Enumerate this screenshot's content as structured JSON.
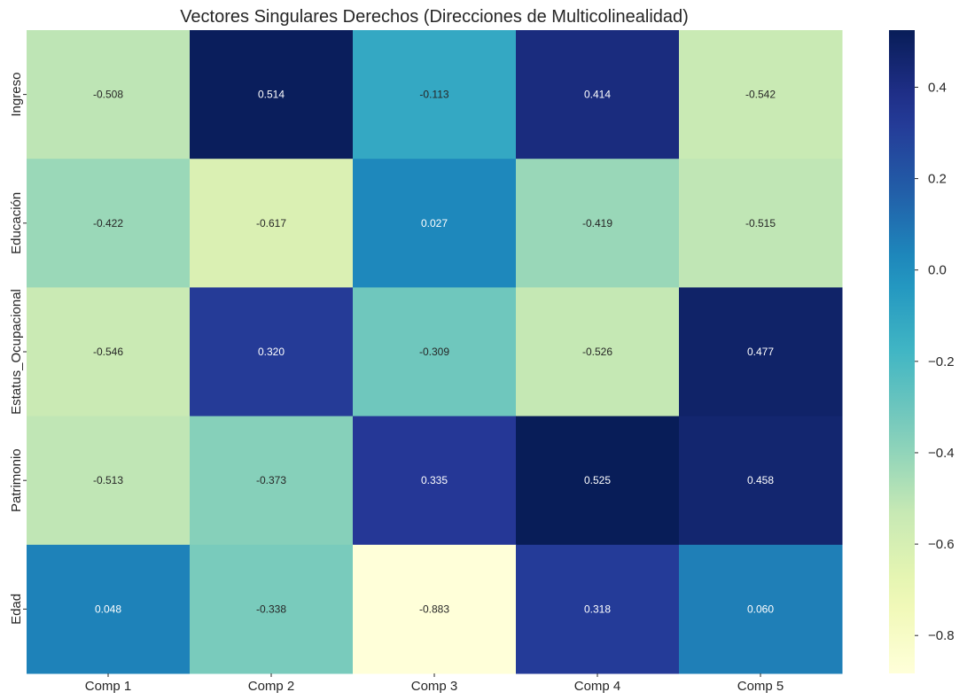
{
  "chart_data": {
    "type": "heatmap",
    "title": "Vectores Singulares Derechos (Direcciones de Multicolinealidad)",
    "xlabel": "",
    "ylabel": "",
    "x_categories": [
      "Comp 1",
      "Comp 2",
      "Comp 3",
      "Comp 4",
      "Comp 5"
    ],
    "y_categories": [
      "Ingreso",
      "Educación",
      "Estatus_Ocupacional",
      "Patrimonio",
      "Edad"
    ],
    "values": [
      [
        -0.508,
        0.514,
        -0.113,
        0.414,
        -0.542
      ],
      [
        -0.422,
        -0.617,
        0.027,
        -0.419,
        -0.515
      ],
      [
        -0.546,
        0.32,
        -0.309,
        -0.526,
        0.477
      ],
      [
        -0.513,
        -0.373,
        0.335,
        0.525,
        0.458
      ],
      [
        0.048,
        -0.338,
        -0.883,
        0.318,
        0.06
      ]
    ],
    "value_format": "0.000",
    "colormap": "YlGnBu",
    "color_range": [
      -0.883,
      0.525
    ],
    "colorbar": {
      "ticks": [
        0.4,
        0.2,
        0.0,
        -0.2,
        -0.4,
        -0.6,
        -0.8
      ],
      "tick_labels": [
        "0.4",
        "0.2",
        "0.0",
        "−0.2",
        "−0.4",
        "−0.6",
        "−0.8"
      ],
      "position": "right"
    },
    "grid": false
  }
}
